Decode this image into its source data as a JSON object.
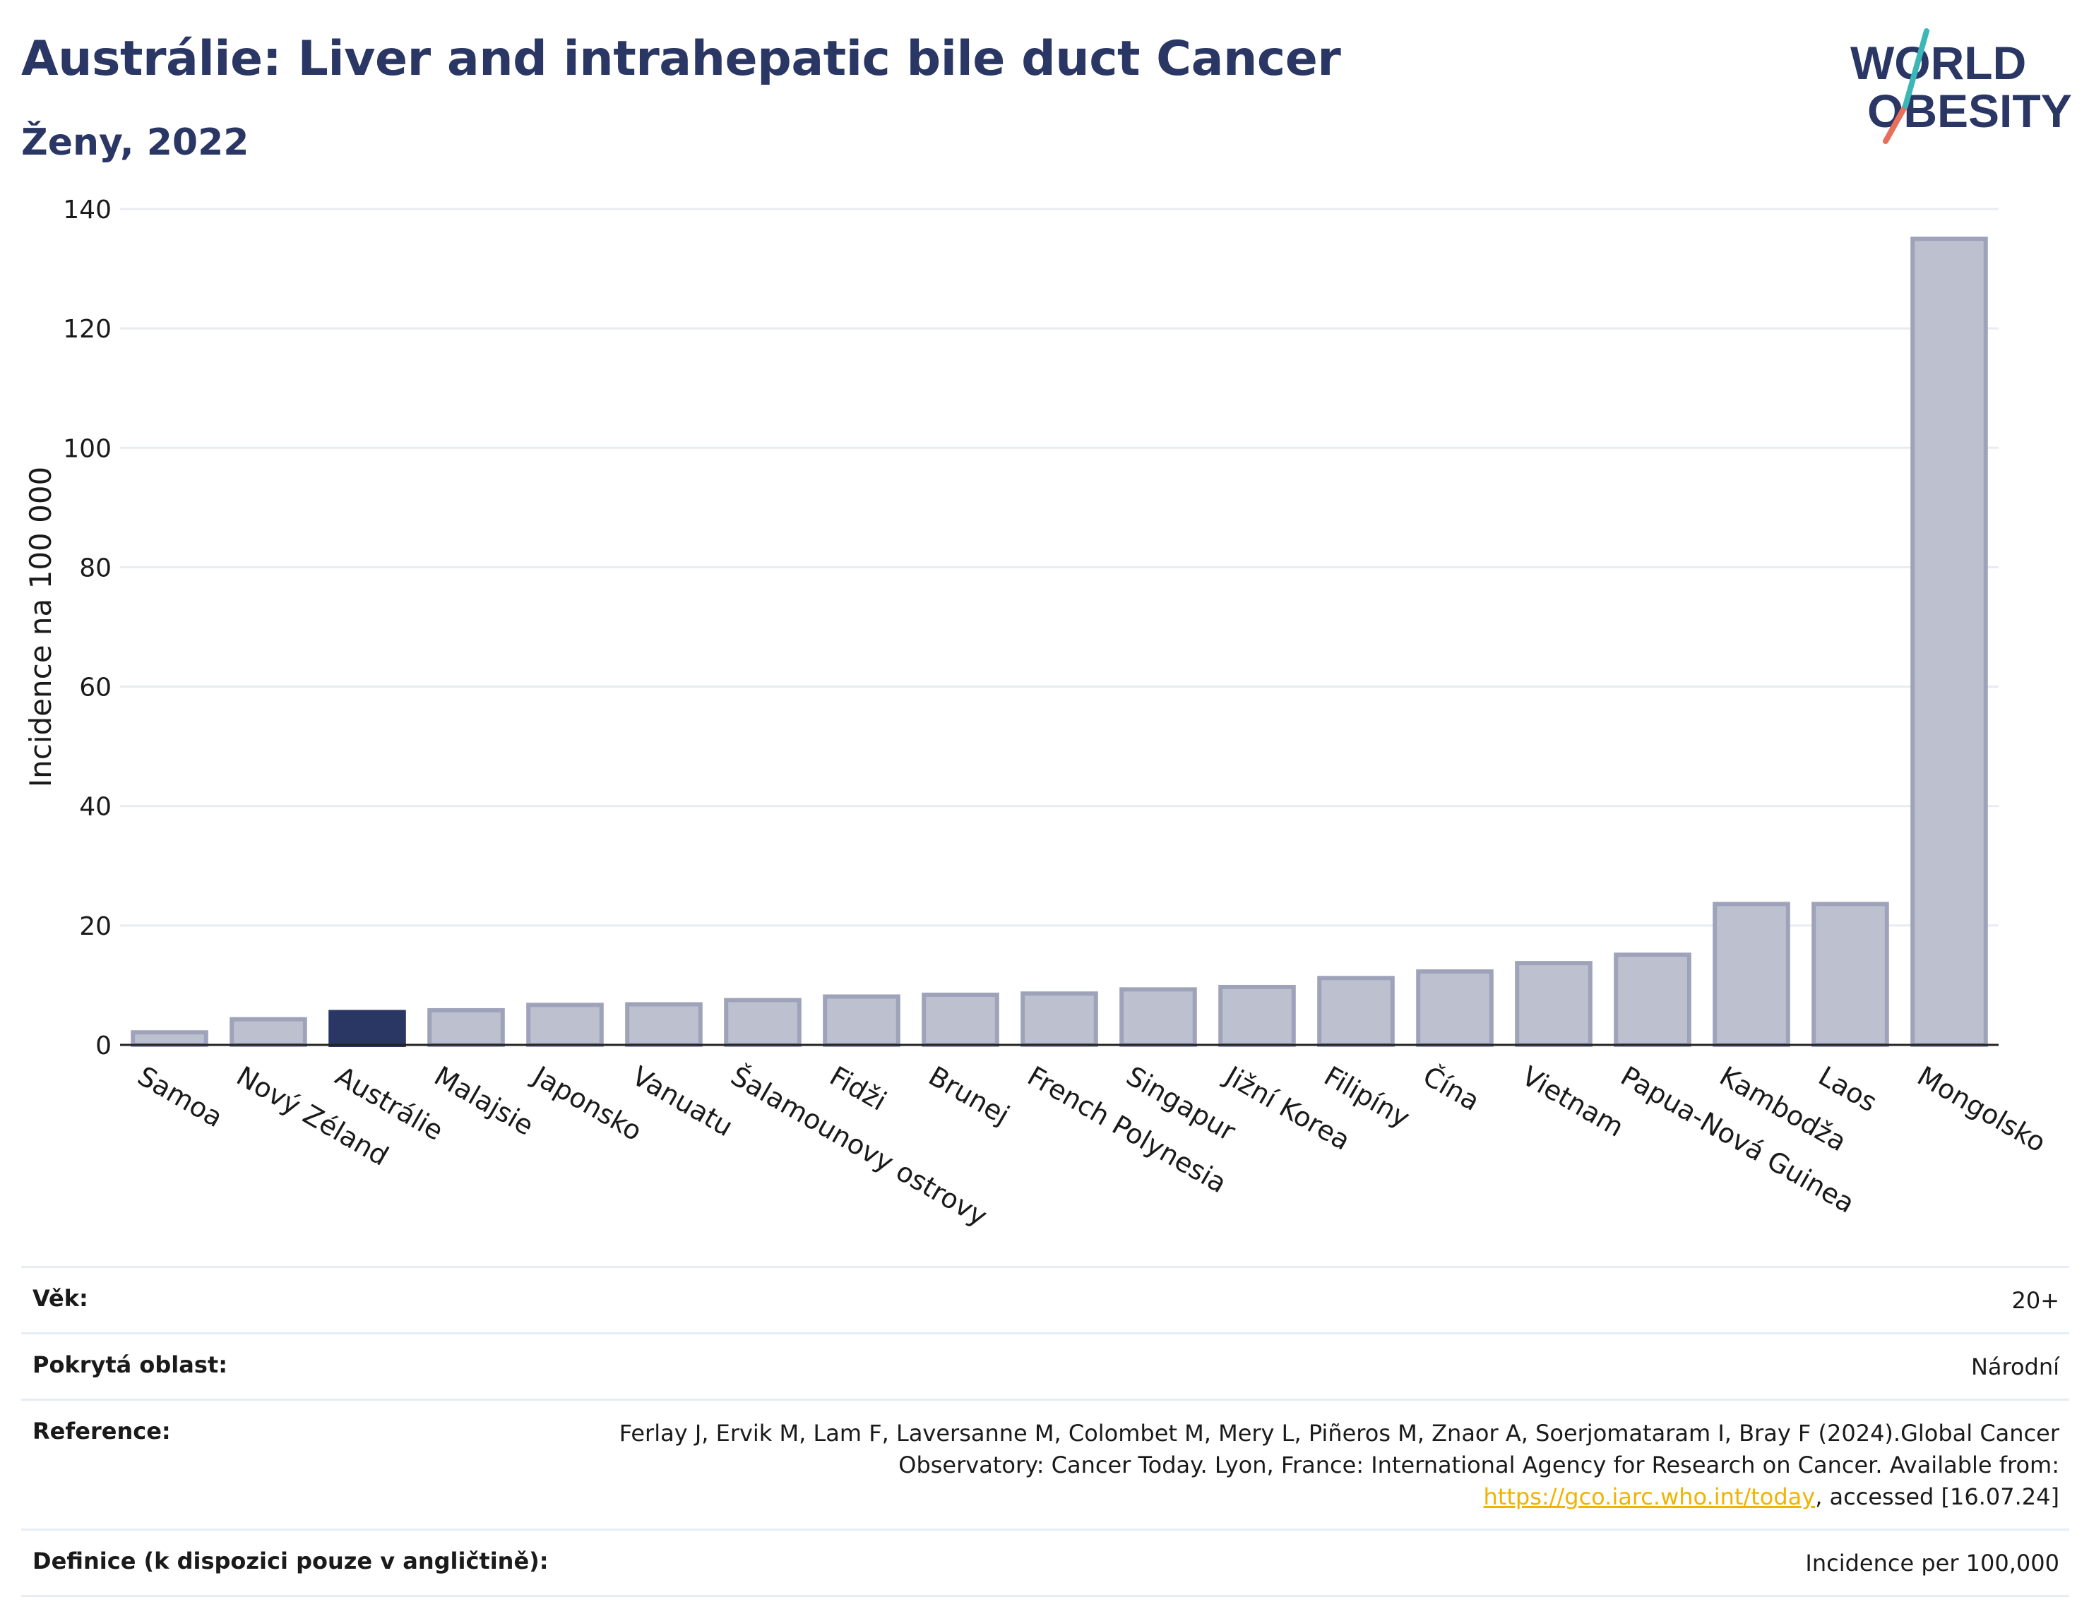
{
  "title": "Austrálie: Liver and intrahepatic bile duct Cancer",
  "subtitle": "Ženy, 2022",
  "logo": {
    "line1": "WORLD",
    "line2": "OBESITY"
  },
  "colors": {
    "highlight": "#2a3663",
    "bar": "#bdc0cf",
    "bar_edge": "#9fa3ba",
    "title": "#2a3663",
    "grid": "#e8ebf0",
    "link": "#f0b400"
  },
  "chart_data": {
    "type": "bar",
    "ylabel": "Incidence na 100 000",
    "xlabel": "",
    "ylim": [
      0,
      140
    ],
    "yticks": [
      0,
      20,
      40,
      60,
      80,
      100,
      120,
      140
    ],
    "grid": true,
    "highlight": "Austrálie",
    "categories": [
      "Samoa",
      "Nový Zéland",
      "Austrálie",
      "Malajsie",
      "Japonsko",
      "Vanuatu",
      "Šalamounovy ostrovy",
      "Fidži",
      "Brunej",
      "French Polynesia",
      "Singapur",
      "Jižní Korea",
      "Filipíny",
      "Čína",
      "Vietnam",
      "Papua-Nová Guinea",
      "Kambodža",
      "Laos",
      "Mongolsko"
    ],
    "values": [
      2.1,
      4.3,
      5.5,
      5.8,
      6.7,
      6.8,
      7.5,
      8.1,
      8.4,
      8.6,
      9.3,
      9.7,
      11.2,
      12.3,
      13.7,
      15.1,
      23.6,
      23.6,
      135.0
    ]
  },
  "meta": [
    {
      "key": "Věk:",
      "value": "20+"
    },
    {
      "key": "Pokrytá oblast:",
      "value": "Národní"
    },
    {
      "key": "Reference:",
      "value_part1": "Ferlay J, Ervik M, Lam F, Laversanne M, Colombet M, Mery L, Piñeros M, Znaor A, Soerjomataram I, Bray F (2024).Global Cancer Observatory: Cancer Today. Lyon, France: International Agency for Research on Cancer. Available from: ",
      "link": "https://gco.iarc.who.int/today",
      "value_part2": ", accessed [16.07.24]"
    },
    {
      "key": "Definice (k dispozici pouze v angličtině):",
      "value": "Incidence per 100,000"
    }
  ]
}
